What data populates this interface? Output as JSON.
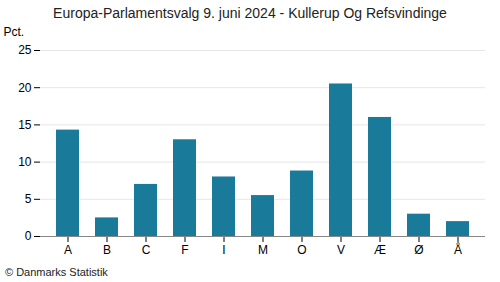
{
  "chart_data": {
    "type": "bar",
    "title": "Europa-Parlamentsvalg 9. juni 2024 - Kullerup Og Refsvindinge",
    "categories": [
      "A",
      "B",
      "C",
      "F",
      "I",
      "M",
      "O",
      "V",
      "Æ",
      "Ø",
      "Å"
    ],
    "values": [
      14.3,
      2.5,
      7.0,
      13.0,
      8.0,
      5.5,
      8.8,
      20.5,
      16.0,
      3.0,
      2.0
    ],
    "color": "#1a7a9a",
    "ylabel": "Pct.",
    "ylim": [
      0,
      25
    ],
    "yticks": [
      0,
      5,
      10,
      15,
      20,
      25
    ],
    "grid": true,
    "footer": "© Danmarks Statistik"
  }
}
